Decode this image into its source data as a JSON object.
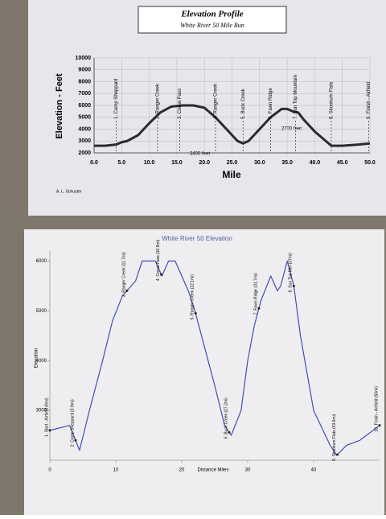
{
  "chart_data": [
    {
      "type": "line",
      "title": "Elevation Profile",
      "subtitle": "White River 50 Mile Run",
      "y_label": "Elevation - Feet",
      "x_label": "Mile",
      "color": "#2b2b2b",
      "x": [
        0,
        2,
        4,
        5,
        6,
        8,
        10,
        12,
        14,
        16,
        18,
        20,
        22,
        24,
        26,
        27,
        28,
        30,
        32,
        34,
        35,
        36,
        37,
        38,
        40,
        42,
        43,
        45,
        48,
        50
      ],
      "values": [
        2600,
        2600,
        2700,
        2900,
        3000,
        3500,
        4500,
        5400,
        5900,
        6000,
        6000,
        5800,
        5000,
        4000,
        3000,
        2800,
        3000,
        4000,
        5000,
        5700,
        5700,
        5500,
        5400,
        4800,
        3800,
        3000,
        2600,
        2600,
        2700,
        2800
      ],
      "xlim": [
        0,
        50
      ],
      "ylim": [
        2000,
        10000
      ],
      "xticks": [
        {
          "value": 0,
          "label": "0.0"
        },
        {
          "value": 5,
          "label": "5.0"
        },
        {
          "value": 10,
          "label": "10.0"
        },
        {
          "value": 15,
          "label": "15.0"
        },
        {
          "value": 20,
          "label": "20.0"
        },
        {
          "value": 25,
          "label": "25.0"
        },
        {
          "value": 30,
          "label": "30.0"
        },
        {
          "value": 35,
          "label": "35.0"
        },
        {
          "value": 40,
          "label": "40.0"
        },
        {
          "value": 45,
          "label": "45.0"
        },
        {
          "value": 50,
          "label": "50.0"
        }
      ],
      "yticks": [
        2000,
        3000,
        4000,
        5000,
        6000,
        7000,
        8000,
        9000,
        10000
      ],
      "markers": [
        {
          "label": "1. Camp Sheppard",
          "x": 4
        },
        {
          "label": "2. Ranger Creek",
          "x": 11.5
        },
        {
          "label": "3. Corral Pass",
          "x": 15.5
        },
        {
          "label": "4. Ranger Creek",
          "x": 22
        },
        {
          "label": "5. Buck Creek",
          "x": 27
        },
        {
          "label": "6. Fawn Ridge",
          "x": 32
        },
        {
          "label": "7. Sun Top Mountain",
          "x": 36.5
        },
        {
          "label": "8. Skookum Flats",
          "x": 43
        },
        {
          "label": "9. Finish - Airfield",
          "x": 49.8
        }
      ],
      "annotations": [
        "3400 feet",
        "2700 feet"
      ],
      "credit": "A. L. Schuster"
    },
    {
      "type": "line",
      "title": "White River 50 Elevation",
      "y_label": "Elevation",
      "x_label": "Distance Miles",
      "color": "#4050b0",
      "x": [
        0,
        3,
        4.5,
        6,
        8,
        9.5,
        11,
        13,
        14,
        16,
        17,
        18,
        19,
        21,
        22,
        24,
        25,
        26.5,
        27.5,
        29,
        30,
        31,
        32,
        33.5,
        34.5,
        35,
        36,
        37,
        38,
        40,
        42.5,
        43.5,
        45,
        47,
        50
      ],
      "values": [
        2600,
        2700,
        2200,
        3000,
        4000,
        4800,
        5300,
        5600,
        6000,
        6000,
        5700,
        6000,
        6000,
        5400,
        5000,
        4000,
        3500,
        2700,
        2500,
        3000,
        4000,
        4700,
        5200,
        5700,
        5400,
        5500,
        6000,
        5500,
        4500,
        3000,
        2300,
        2100,
        2300,
        2400,
        2700
      ],
      "xlim": [
        0,
        50
      ],
      "ylim": [
        2000,
        6200
      ],
      "xticks": [
        0,
        10,
        20,
        30,
        40
      ],
      "yticks": [
        3000,
        4000,
        5000,
        6000
      ],
      "markers": [
        {
          "label": "1. Start - Airfield (0mi)",
          "x": 0
        },
        {
          "label": "2. Camp Sheppard (3.9mi)",
          "x": 3.9
        },
        {
          "label": "3. Ranger Creek (11.7mi)",
          "x": 11.7
        },
        {
          "label": "4. Corral Pass (16.9mi)",
          "x": 16.9
        },
        {
          "label": "5. Ranger Creek (22.1mi)",
          "x": 22.1
        },
        {
          "label": "6. Buck Creek (27.2mi)",
          "x": 27.2
        },
        {
          "label": "7. Fawn Ridge (31.7mi)",
          "x": 31.7
        },
        {
          "label": "8. Sun Top Mtn (37mi)",
          "x": 37
        },
        {
          "label": "9. Skookum Flats (43.6mi)",
          "x": 43.6
        },
        {
          "label": "10. Finish - Airfield (50mi)",
          "x": 50
        }
      ]
    }
  ]
}
